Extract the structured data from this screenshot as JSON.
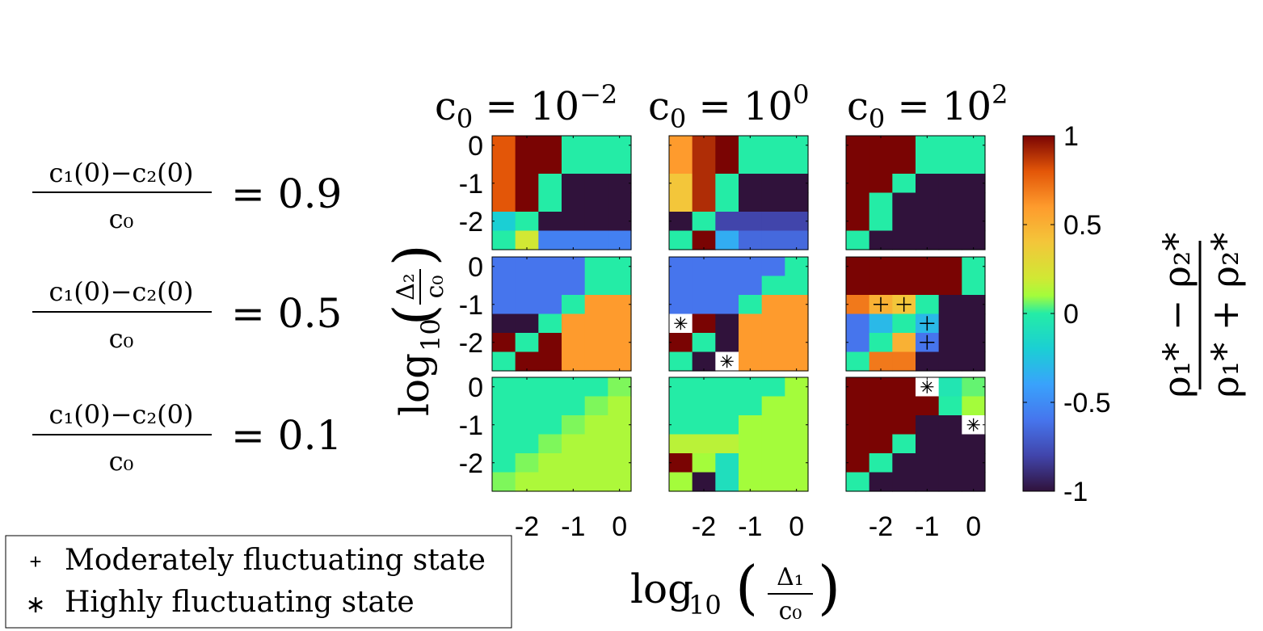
{
  "chart_data": {
    "type": "heatmap",
    "column_titles": [
      {
        "base": "c",
        "sub": "0",
        "eq": " = 10",
        "exp": "−2"
      },
      {
        "base": "c",
        "sub": "0",
        "eq": " = 10",
        "exp": "0"
      },
      {
        "base": "c",
        "sub": "0",
        "eq": " = 10",
        "exp": "2"
      }
    ],
    "row_labels": [
      {
        "numerator": "c₁(0)−c₂(0)",
        "denominator": "c₀",
        "value": "= 0.9"
      },
      {
        "numerator": "c₁(0)−c₂(0)",
        "denominator": "c₀",
        "value": "= 0.5"
      },
      {
        "numerator": "c₁(0)−c₂(0)",
        "denominator": "c₀",
        "value": "= 0.1"
      }
    ],
    "xlabel": {
      "func": "log",
      "sub": "10",
      "numerator": "Δ₁",
      "denominator": "c₀"
    },
    "ylabel": {
      "func": "log",
      "sub": "10",
      "numerator": "Δ₂",
      "denominator": "c₀"
    },
    "x_ticks": [
      {
        "value": -2,
        "label": "-2"
      },
      {
        "value": -1,
        "label": "-1"
      },
      {
        "value": 0,
        "label": "0"
      }
    ],
    "y_ticks": [
      {
        "value": 0,
        "label": "0"
      },
      {
        "value": -1,
        "label": "-1"
      },
      {
        "value": -2,
        "label": "-2"
      }
    ],
    "x_range": [
      -2.75,
      0.25
    ],
    "y_range": [
      -2.75,
      0.25
    ],
    "grid_x": [
      -2.75,
      -2.25,
      -1.75,
      -1.25,
      -0.75,
      -0.25,
      0.25
    ],
    "grid_y": [
      0.25,
      -0.25,
      -0.75,
      -1.25,
      -1.75,
      -2.25,
      -2.75
    ],
    "colorbar": {
      "range": [
        -1,
        1
      ],
      "ticks": [
        {
          "value": 1,
          "label": "1"
        },
        {
          "value": 0.5,
          "label": "0.5"
        },
        {
          "value": 0,
          "label": "0"
        },
        {
          "value": -0.5,
          "label": "-0.5"
        },
        {
          "value": -1,
          "label": "-1"
        }
      ],
      "label": {
        "numerator": "ρ₁* − ρ₂*",
        "denominator": "ρ₁* + ρ₂*"
      },
      "colormap": "turbo"
    },
    "panels": [
      [
        {
          "values": [
            [
              0.8,
              1,
              1,
              0,
              0,
              0
            ],
            [
              0.8,
              1,
              1,
              0,
              0,
              0
            ],
            [
              0.8,
              1,
              0,
              -1,
              -1,
              -1
            ],
            [
              0.8,
              1,
              0,
              -1,
              -1,
              -1
            ],
            [
              -0.2,
              0,
              -1,
              -1,
              -1,
              -1
            ],
            [
              0,
              0.2,
              -0.55,
              -0.55,
              -0.55,
              -0.55
            ]
          ],
          "markers": []
        },
        {
          "values": [
            [
              0.6,
              0.9,
              1,
              0,
              0,
              0
            ],
            [
              0.6,
              0.9,
              1,
              0,
              0,
              0
            ],
            [
              0.4,
              0.9,
              0,
              -1,
              -1,
              -1
            ],
            [
              0.4,
              0.9,
              0,
              -1,
              -1,
              -1
            ],
            [
              -1,
              0,
              -0.8,
              -0.8,
              -0.8,
              -0.8
            ],
            [
              0,
              1,
              -0.35,
              -0.65,
              -0.65,
              -0.65
            ]
          ],
          "markers": []
        },
        {
          "values": [
            [
              1,
              1,
              1,
              0,
              0,
              0
            ],
            [
              1,
              1,
              1,
              0,
              0,
              0
            ],
            [
              1,
              1,
              0,
              -1,
              -1,
              -1
            ],
            [
              1,
              0,
              -1,
              -1,
              -1,
              -1
            ],
            [
              1,
              0,
              -1,
              -1,
              -1,
              -1
            ],
            [
              0,
              -1,
              -1,
              -1,
              -1,
              -1
            ]
          ],
          "markers": []
        }
      ],
      [
        {
          "values": [
            [
              -0.6,
              -0.6,
              -0.6,
              -0.6,
              0,
              0
            ],
            [
              -0.6,
              -0.6,
              -0.6,
              -0.6,
              0,
              0
            ],
            [
              -0.6,
              -0.6,
              -0.6,
              0,
              0.6,
              0.6
            ],
            [
              -1,
              -1,
              0,
              0.6,
              0.6,
              0.6
            ],
            [
              1,
              0,
              1,
              0.6,
              0.6,
              0.6
            ],
            [
              0,
              1,
              1,
              0.6,
              0.6,
              0.6
            ]
          ],
          "markers": []
        },
        {
          "values": [
            [
              -0.6,
              -0.6,
              -0.6,
              -0.6,
              -0.6,
              0
            ],
            [
              -0.6,
              -0.6,
              -0.6,
              -0.6,
              0,
              0
            ],
            [
              -0.6,
              -0.6,
              -0.6,
              0,
              0.6,
              0.6
            ],
            [
              null,
              1,
              -1,
              0.6,
              0.6,
              0.6
            ],
            [
              1,
              0,
              -1,
              0.6,
              0.6,
              0.6
            ],
            [
              0,
              -1,
              null,
              0.6,
              0.6,
              0.6
            ]
          ],
          "markers": [
            {
              "row": 3,
              "col": 0,
              "type": "asterisk"
            },
            {
              "row": 5,
              "col": 2,
              "type": "asterisk"
            }
          ]
        },
        {
          "values": [
            [
              1,
              1,
              1,
              1,
              1,
              0
            ],
            [
              1,
              1,
              1,
              1,
              1,
              0
            ],
            [
              0.7,
              0.5,
              0.4,
              0,
              -1,
              -1
            ],
            [
              -0.6,
              -0.3,
              0,
              -0.3,
              -1,
              -1
            ],
            [
              -0.6,
              0,
              0.5,
              -0.6,
              -1,
              -1
            ],
            [
              0,
              0.7,
              0.7,
              -1,
              -1,
              -1
            ]
          ],
          "markers": [
            {
              "row": 2,
              "col": 1,
              "type": "plus"
            },
            {
              "row": 2,
              "col": 2,
              "type": "plus"
            },
            {
              "row": 3,
              "col": 3,
              "type": "plus"
            },
            {
              "row": 4,
              "col": 3,
              "type": "plus"
            }
          ]
        }
      ],
      [
        {
          "values": [
            [
              0,
              0,
              0,
              0,
              0,
              0.07
            ],
            [
              0,
              0,
              0,
              0,
              0.07,
              0.12
            ],
            [
              0,
              0,
              0,
              0.07,
              0.12,
              0.12
            ],
            [
              0,
              0,
              0.07,
              0.12,
              0.12,
              0.12
            ],
            [
              0,
              0.07,
              0.12,
              0.12,
              0.12,
              0.12
            ],
            [
              0.07,
              0.12,
              0.12,
              0.12,
              0.12,
              0.12
            ]
          ],
          "markers": []
        },
        {
          "values": [
            [
              0,
              0,
              0,
              0,
              0,
              0.1
            ],
            [
              0,
              0,
              0,
              0,
              0.1,
              0.1
            ],
            [
              0,
              0,
              0,
              0.1,
              0.1,
              0.1
            ],
            [
              0.15,
              0.15,
              0.15,
              0.1,
              0.1,
              0.1
            ],
            [
              1,
              0.1,
              -0.1,
              0.1,
              0.1,
              0.1
            ],
            [
              0.1,
              -1,
              -0.1,
              0.1,
              0.1,
              0.1
            ]
          ],
          "markers": []
        },
        {
          "values": [
            [
              1,
              1,
              1,
              null,
              -0.05,
              0.05
            ],
            [
              1,
              1,
              1,
              1,
              0,
              0.1
            ],
            [
              1,
              1,
              1,
              -1,
              -1,
              null
            ],
            [
              1,
              1,
              0,
              -1,
              -1,
              -1
            ],
            [
              1,
              0,
              -1,
              -1,
              -1,
              -1
            ],
            [
              0,
              -1,
              -1,
              -1,
              -1,
              -1
            ]
          ],
          "markers": [
            {
              "row": 0,
              "col": 3,
              "type": "asterisk"
            },
            {
              "row": 2,
              "col": 5,
              "type": "asterisk"
            }
          ]
        }
      ]
    ],
    "legend": {
      "location": "bottom-left",
      "entries": [
        {
          "symbol": "+",
          "label": "Moderately fluctuating state"
        },
        {
          "symbol": "∗",
          "label": "Highly fluctuating state"
        }
      ]
    }
  }
}
